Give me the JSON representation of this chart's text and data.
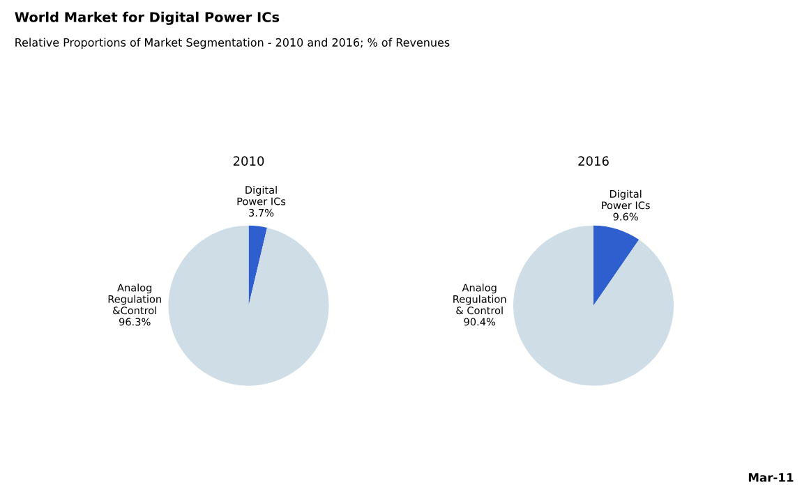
{
  "chart_data": [
    {
      "type": "pie",
      "title": "2010",
      "annotations": [
        "World Market for Digital Power ICs",
        "Relative Proportions of Market Segmentation - 2010 and 2016; % of Revenues"
      ],
      "categories": [
        "Digital\nPower ICs",
        "Analog\nRegulation\n&Control"
      ],
      "values": [
        3.7,
        96.3
      ],
      "value_labels": [
        "3.7%",
        "96.3%"
      ],
      "colors": [
        "#2f5fcf",
        "#cfdde6"
      ]
    },
    {
      "type": "pie",
      "title": "2016",
      "annotations": [
        "Mar-11"
      ],
      "categories": [
        "Digital\nPower ICs",
        "Analog\nRegulation\n& Control"
      ],
      "values": [
        9.6,
        90.4
      ],
      "value_labels": [
        "9.6%",
        "90.4%"
      ],
      "colors": [
        "#2f5fcf",
        "#cfdde6"
      ]
    }
  ]
}
